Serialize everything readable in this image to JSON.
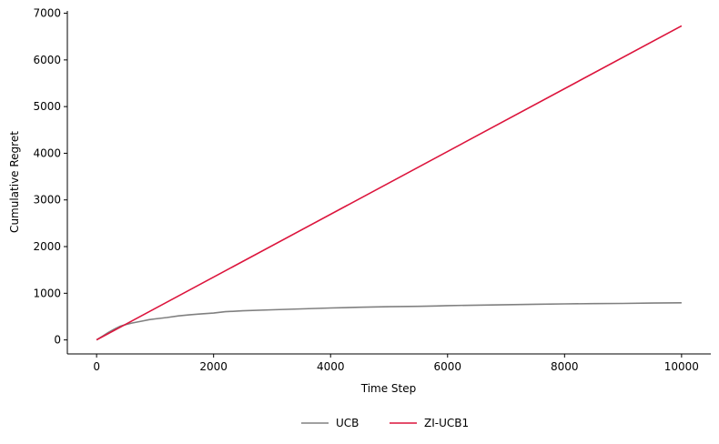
{
  "chart_data": {
    "type": "line",
    "title": "",
    "xlabel": "Time Step",
    "ylabel": "Cumulative Regret",
    "xlim": [
      -500,
      10500
    ],
    "ylim": [
      -300,
      7050
    ],
    "xticks": [
      0,
      2000,
      4000,
      6000,
      8000,
      10000
    ],
    "yticks": [
      0,
      1000,
      2000,
      3000,
      4000,
      5000,
      6000,
      7000
    ],
    "grid": false,
    "legend_position": "bottom-center",
    "series": [
      {
        "name": "UCB",
        "color": "#808080",
        "x": [
          0,
          100,
          200,
          300,
          400,
          500,
          600,
          700,
          800,
          900,
          1000,
          1200,
          1400,
          1600,
          1800,
          2000,
          2100,
          2200,
          2500,
          3000,
          3500,
          4000,
          4500,
          5000,
          5500,
          5800,
          6000,
          6500,
          7000,
          7500,
          8000,
          8500,
          9000,
          9500,
          10000
        ],
        "y": [
          0,
          80,
          160,
          230,
          290,
          330,
          360,
          385,
          410,
          435,
          450,
          480,
          515,
          540,
          560,
          575,
          590,
          605,
          625,
          645,
          665,
          685,
          700,
          712,
          720,
          728,
          735,
          745,
          755,
          765,
          772,
          778,
          783,
          790,
          795
        ]
      },
      {
        "name": "ZI-UCB1",
        "color": "#dc143c",
        "x": [
          0,
          10000
        ],
        "y": [
          0,
          6730
        ]
      }
    ]
  }
}
